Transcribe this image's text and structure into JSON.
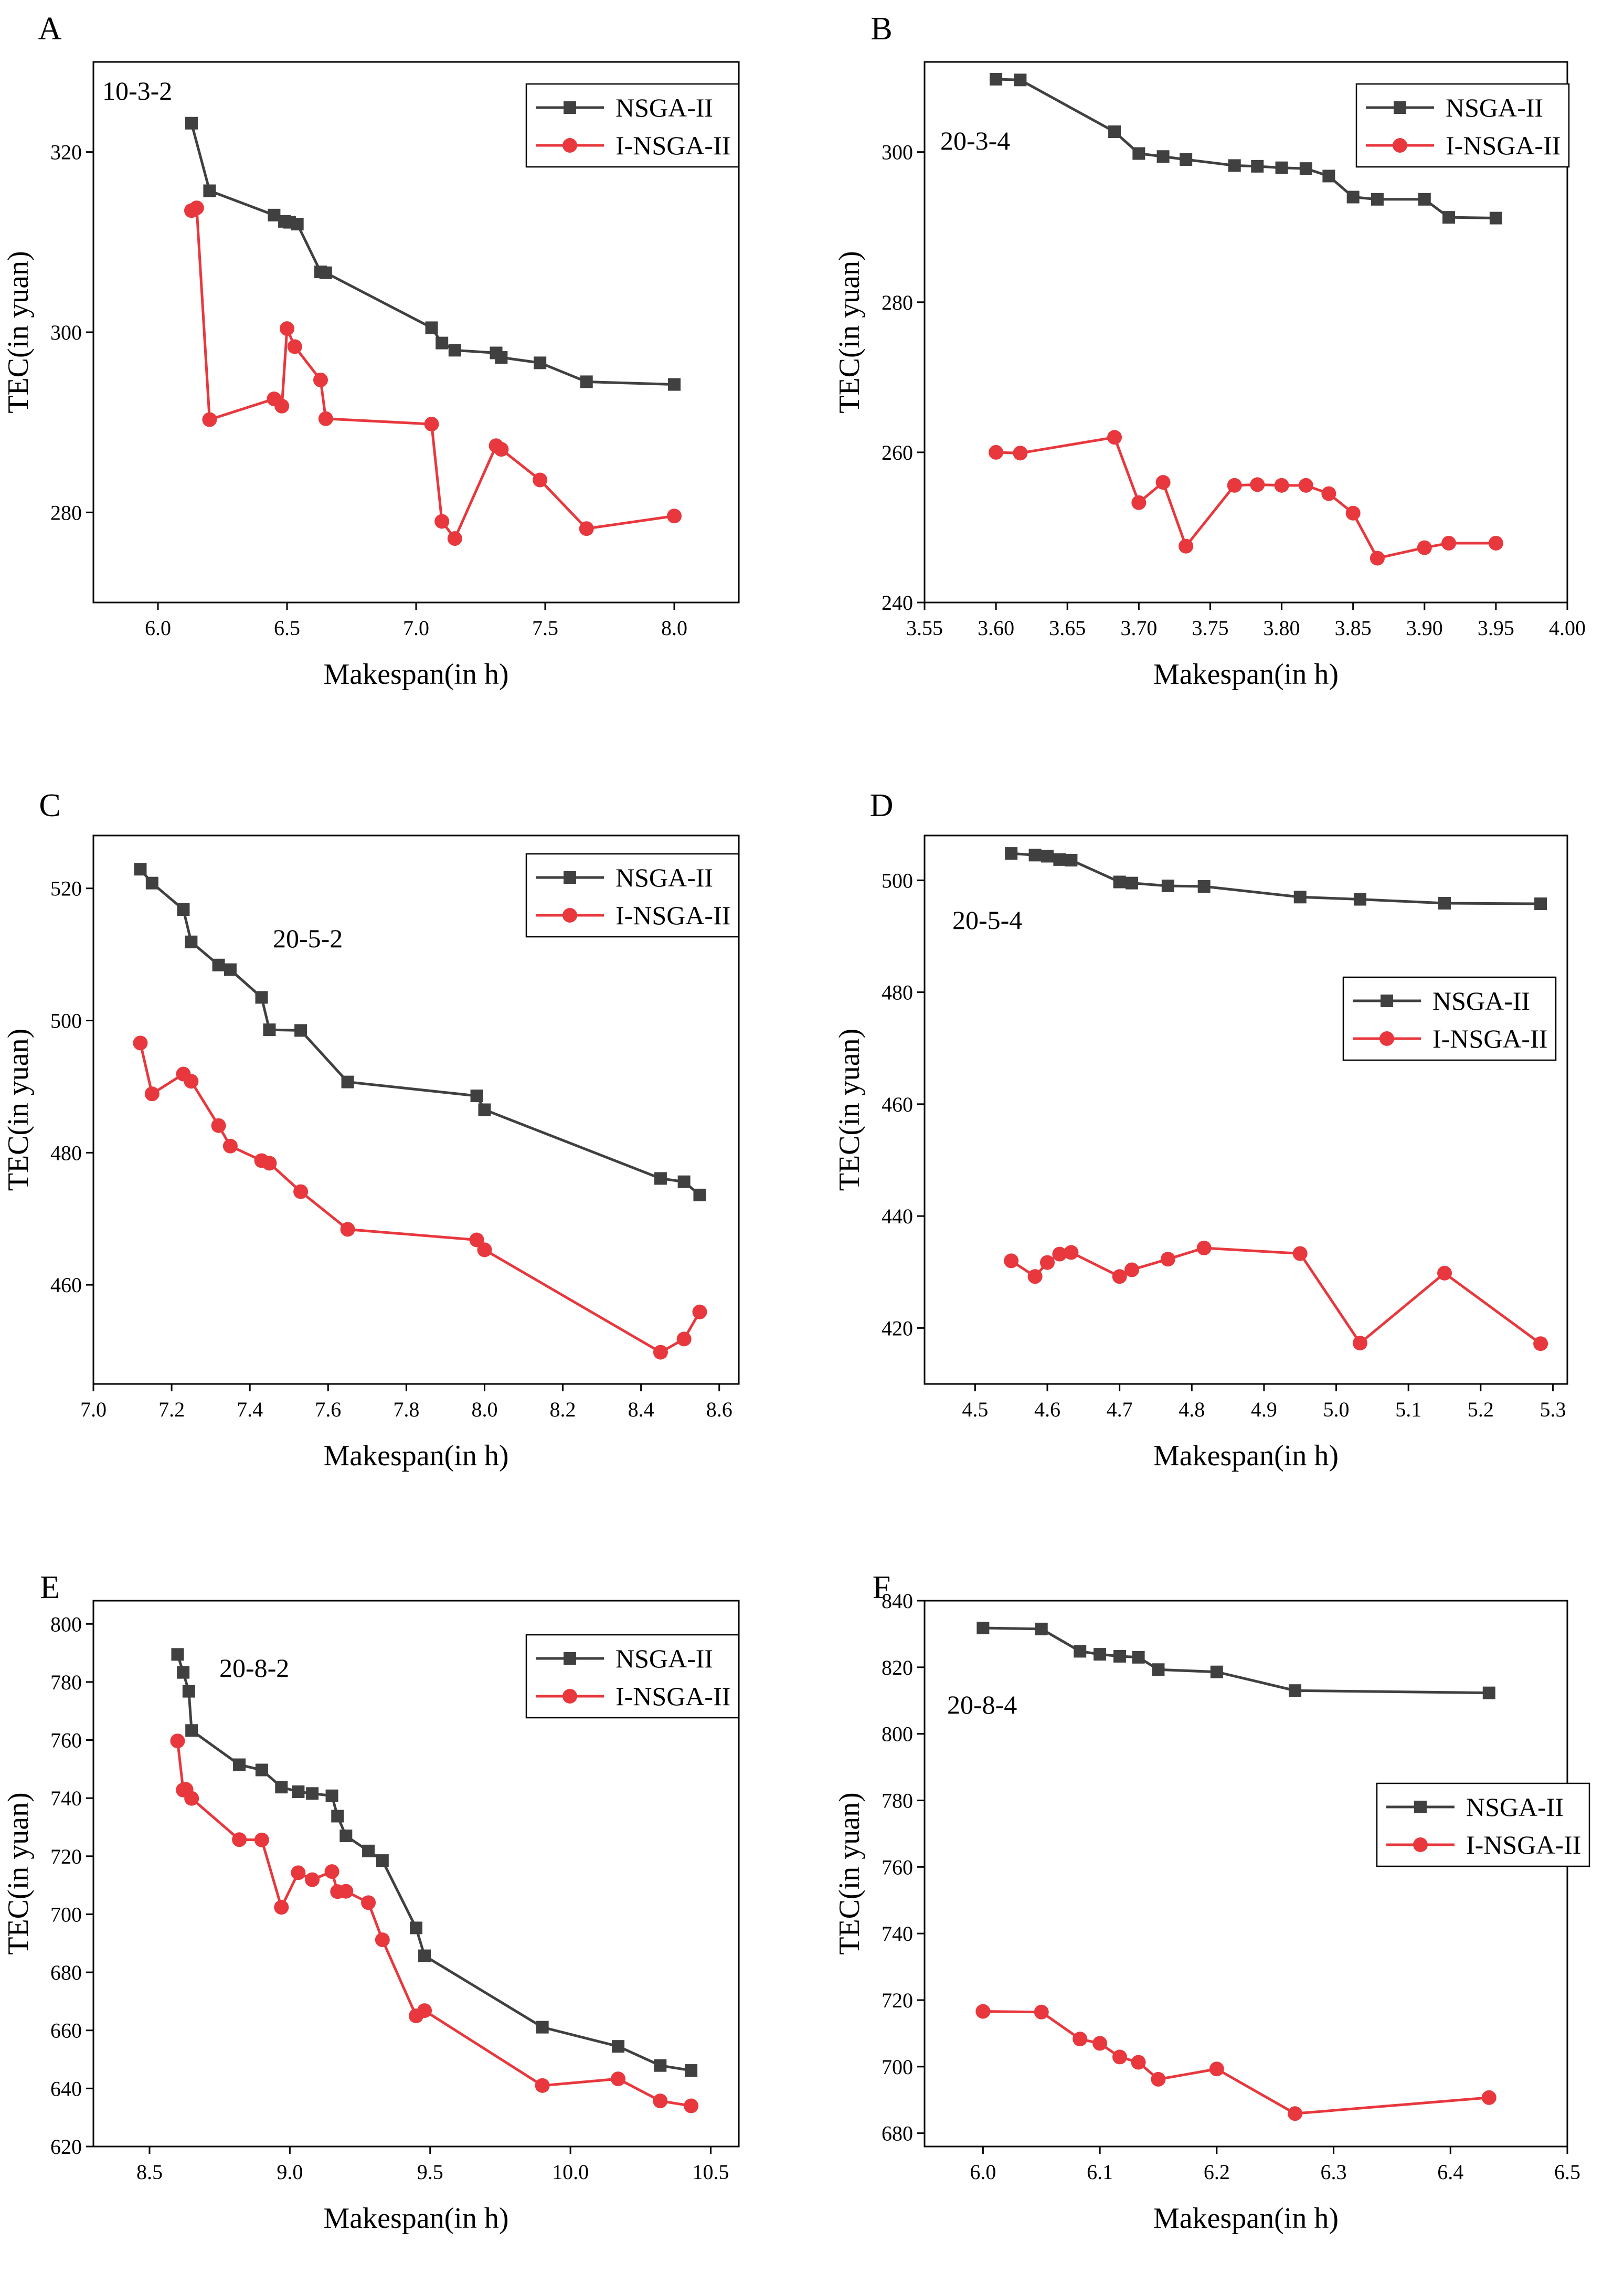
{
  "colors": {
    "nsga": "#404040",
    "insga": "#e8383d",
    "axis": "#000000",
    "background": "#ffffff"
  },
  "series_names": [
    "NSGA-II",
    "I-NSGA-II"
  ],
  "chart_data": [
    {
      "panel": "A",
      "instance": "10-3-2",
      "type": "line",
      "xlabel": "Makespan(in h)",
      "ylabel": "TEC(in yuan)",
      "xlim": [
        5.75,
        8.25
      ],
      "ylim": [
        270,
        330
      ],
      "xticks": [
        6.0,
        6.5,
        7.0,
        7.5,
        8.0
      ],
      "xtick_labels": [
        "6.0",
        "6.5",
        "7.0",
        "7.5",
        "8.0"
      ],
      "yticks": [
        280,
        300,
        320
      ],
      "ytick_labels": [
        "280",
        "300",
        "320"
      ],
      "legend_position": "top-right",
      "instance_label_position": "top-left",
      "series": [
        {
          "name": "NSGA-II",
          "marker": "square",
          "x": [
            6.13,
            6.2,
            6.45,
            6.49,
            6.51,
            6.54,
            6.63,
            6.65,
            7.06,
            7.1,
            7.15,
            7.31,
            7.33,
            7.48,
            7.66,
            8.0
          ],
          "y": [
            323.2,
            315.7,
            313.0,
            312.3,
            312.2,
            312.0,
            306.7,
            306.6,
            300.5,
            298.8,
            298.0,
            297.7,
            297.2,
            296.6,
            294.5,
            294.2
          ]
        },
        {
          "name": "I-NSGA-II",
          "marker": "circle",
          "x": [
            6.13,
            6.15,
            6.2,
            6.45,
            6.48,
            6.5,
            6.53,
            6.63,
            6.65,
            7.06,
            7.1,
            7.15,
            7.31,
            7.33,
            7.48,
            7.66,
            8.0
          ],
          "y": [
            313.5,
            313.8,
            290.3,
            292.6,
            291.8,
            300.4,
            298.4,
            294.7,
            290.4,
            289.8,
            279.0,
            277.1,
            287.4,
            287.0,
            283.6,
            278.2,
            279.6
          ]
        }
      ]
    },
    {
      "panel": "B",
      "instance": "20-3-4",
      "type": "line",
      "xlabel": "Makespan(in h)",
      "ylabel": "TEC(in yuan)",
      "xlim": [
        3.55,
        4.0
      ],
      "ylim": [
        240,
        312
      ],
      "xticks": [
        3.55,
        3.6,
        3.65,
        3.7,
        3.75,
        3.8,
        3.85,
        3.9,
        3.95,
        4.0
      ],
      "xtick_labels": [
        "3.55",
        "3.60",
        "3.65",
        "3.70",
        "3.75",
        "3.80",
        "3.85",
        "3.90",
        "3.95",
        "4.00"
      ],
      "yticks": [
        240,
        260,
        280,
        300
      ],
      "ytick_labels": [
        "240",
        "260",
        "280",
        "300"
      ],
      "legend_position": "top-right",
      "instance_label_position": "top-left",
      "series": [
        {
          "name": "NSGA-II",
          "marker": "square",
          "x": [
            3.6,
            3.617,
            3.683,
            3.7,
            3.717,
            3.733,
            3.767,
            3.783,
            3.8,
            3.817,
            3.833,
            3.85,
            3.867,
            3.9,
            3.917,
            3.95
          ],
          "y": [
            309.7,
            309.6,
            302.7,
            299.8,
            299.4,
            299.0,
            298.2,
            298.1,
            297.9,
            297.8,
            296.8,
            294.0,
            293.7,
            293.7,
            291.3,
            291.2
          ]
        },
        {
          "name": "I-NSGA-II",
          "marker": "circle",
          "x": [
            3.6,
            3.617,
            3.683,
            3.7,
            3.717,
            3.733,
            3.767,
            3.783,
            3.8,
            3.817,
            3.833,
            3.85,
            3.867,
            3.9,
            3.917,
            3.95
          ],
          "y": [
            260.0,
            259.9,
            262.0,
            253.3,
            256.0,
            247.5,
            255.6,
            255.7,
            255.6,
            255.6,
            254.5,
            251.9,
            245.9,
            247.3,
            247.9,
            247.9
          ]
        }
      ]
    },
    {
      "panel": "C",
      "instance": "20-5-2",
      "type": "line",
      "xlabel": "Makespan(in h)",
      "ylabel": "TEC(in yuan)",
      "xlim": [
        7.0,
        8.65
      ],
      "ylim": [
        445,
        528
      ],
      "xticks": [
        7.0,
        7.2,
        7.4,
        7.6,
        7.8,
        8.0,
        8.2,
        8.4,
        8.6
      ],
      "xtick_labels": [
        "7.0",
        "7.2",
        "7.4",
        "7.6",
        "7.8",
        "8.0",
        "8.2",
        "8.4",
        "8.6"
      ],
      "yticks": [
        460,
        480,
        500,
        520
      ],
      "ytick_labels": [
        "460",
        "480",
        "500",
        "520"
      ],
      "legend_position": "top-right",
      "instance_label_position": "top-center",
      "series": [
        {
          "name": "NSGA-II",
          "marker": "square",
          "x": [
            7.12,
            7.15,
            7.23,
            7.25,
            7.32,
            7.35,
            7.43,
            7.45,
            7.53,
            7.65,
            7.98,
            8.0,
            8.45,
            8.51,
            8.55
          ],
          "y": [
            522.9,
            520.8,
            516.8,
            511.9,
            508.4,
            507.7,
            503.5,
            498.6,
            498.5,
            490.7,
            488.6,
            486.5,
            476.1,
            475.6,
            473.6
          ]
        },
        {
          "name": "I-NSGA-II",
          "marker": "circle",
          "x": [
            7.12,
            7.15,
            7.23,
            7.25,
            7.32,
            7.35,
            7.43,
            7.45,
            7.53,
            7.65,
            7.98,
            8.0,
            8.45,
            8.51,
            8.55
          ],
          "y": [
            496.6,
            488.9,
            491.9,
            490.8,
            484.1,
            481.0,
            478.8,
            478.4,
            474.1,
            468.4,
            466.8,
            465.3,
            449.8,
            451.8,
            455.9
          ]
        }
      ]
    },
    {
      "panel": "D",
      "instance": "20-5-4",
      "type": "line",
      "xlabel": "Makespan(in h)",
      "ylabel": "TEC(in yuan)",
      "xlim": [
        4.43,
        5.32
      ],
      "ylim": [
        410,
        508
      ],
      "xticks": [
        4.5,
        4.6,
        4.7,
        4.8,
        4.9,
        5.0,
        5.1,
        5.2,
        5.3
      ],
      "xtick_labels": [
        "4.5",
        "4.6",
        "4.7",
        "4.8",
        "4.9",
        "5.0",
        "5.1",
        "5.2",
        "5.3"
      ],
      "yticks": [
        420,
        440,
        460,
        480,
        500
      ],
      "ytick_labels": [
        "420",
        "440",
        "460",
        "480",
        "500"
      ],
      "legend_position": "upper-right",
      "instance_label_position": "top-left",
      "series": [
        {
          "name": "NSGA-II",
          "marker": "square",
          "x": [
            4.55,
            4.583,
            4.6,
            4.617,
            4.633,
            4.7,
            4.717,
            4.767,
            4.817,
            4.95,
            5.033,
            5.15,
            5.283
          ],
          "y": [
            504.8,
            504.5,
            504.3,
            503.7,
            503.6,
            499.7,
            499.5,
            499.0,
            498.9,
            497.0,
            496.6,
            495.9,
            495.8
          ]
        },
        {
          "name": "I-NSGA-II",
          "marker": "circle",
          "x": [
            4.55,
            4.583,
            4.6,
            4.617,
            4.633,
            4.7,
            4.717,
            4.767,
            4.817,
            4.95,
            5.033,
            5.15,
            5.283
          ],
          "y": [
            432.0,
            429.2,
            431.7,
            433.2,
            433.5,
            429.2,
            430.4,
            432.3,
            434.3,
            433.3,
            417.3,
            429.8,
            417.2
          ]
        }
      ]
    },
    {
      "panel": "E",
      "instance": "20-8-2",
      "type": "line",
      "xlabel": "Makespan(in h)",
      "ylabel": "TEC(in yuan)",
      "xlim": [
        8.3,
        10.6
      ],
      "ylim": [
        620,
        808
      ],
      "xticks": [
        8.5,
        9.0,
        9.5,
        10.0,
        10.5
      ],
      "xtick_labels": [
        "8.5",
        "9.0",
        "9.5",
        "10.0",
        "10.5"
      ],
      "yticks": [
        620,
        640,
        660,
        680,
        700,
        720,
        740,
        760,
        780,
        800
      ],
      "ytick_labels": [
        "620",
        "640",
        "660",
        "680",
        "700",
        "720",
        "740",
        "760",
        "780",
        "800"
      ],
      "legend_position": "top-right",
      "instance_label_position": "top-left",
      "series": [
        {
          "name": "NSGA-II",
          "marker": "square",
          "x": [
            8.6,
            8.62,
            8.64,
            8.65,
            8.82,
            8.9,
            8.97,
            9.03,
            9.08,
            9.15,
            9.17,
            9.2,
            9.28,
            9.33,
            9.45,
            9.48,
            9.9,
            10.17,
            10.32,
            10.43
          ],
          "y": [
            789.5,
            783.3,
            776.8,
            763.3,
            751.5,
            749.7,
            743.8,
            742.2,
            741.6,
            740.8,
            733.8,
            727.0,
            721.8,
            718.5,
            695.3,
            685.7,
            661.1,
            654.5,
            647.9,
            646.2
          ]
        },
        {
          "name": "I-NSGA-II",
          "marker": "circle",
          "x": [
            8.6,
            8.62,
            8.63,
            8.65,
            8.82,
            8.9,
            8.97,
            9.03,
            9.08,
            9.15,
            9.17,
            9.2,
            9.28,
            9.33,
            9.45,
            9.48,
            9.9,
            10.17,
            10.32,
            10.43
          ],
          "y": [
            759.7,
            742.8,
            743.0,
            739.9,
            725.7,
            725.6,
            702.4,
            714.3,
            711.9,
            714.7,
            707.8,
            707.9,
            704.0,
            691.2,
            665.0,
            666.8,
            641.0,
            643.3,
            635.7,
            634.0
          ]
        }
      ]
    },
    {
      "panel": "F",
      "instance": "20-8-4",
      "type": "line",
      "xlabel": "Makespan(in h)",
      "ylabel": "TEC(in yuan)",
      "xlim": [
        5.95,
        6.5
      ],
      "ylim": [
        676,
        840
      ],
      "xticks": [
        6.0,
        6.1,
        6.2,
        6.3,
        6.4,
        6.5
      ],
      "xtick_labels": [
        "6.0",
        "6.1",
        "6.2",
        "6.3",
        "6.4",
        "6.5"
      ],
      "yticks": [
        680,
        700,
        720,
        740,
        760,
        780,
        800,
        820,
        840
      ],
      "ytick_labels": [
        "680",
        "700",
        "720",
        "740",
        "760",
        "780",
        "800",
        "820",
        "840"
      ],
      "legend_position": "middle-right",
      "instance_label_position": "top-left",
      "series": [
        {
          "name": "NSGA-II",
          "marker": "square",
          "x": [
            6.0,
            6.05,
            6.083,
            6.1,
            6.117,
            6.133,
            6.15,
            6.2,
            6.267,
            6.433
          ],
          "y": [
            831.8,
            831.5,
            824.8,
            823.9,
            823.3,
            823.0,
            819.3,
            818.6,
            813.0,
            812.3
          ]
        },
        {
          "name": "I-NSGA-II",
          "marker": "circle",
          "x": [
            6.0,
            6.05,
            6.083,
            6.1,
            6.117,
            6.133,
            6.15,
            6.2,
            6.267,
            6.433
          ],
          "y": [
            716.6,
            716.4,
            708.3,
            707.0,
            702.9,
            701.3,
            696.2,
            699.3,
            685.9,
            690.7
          ]
        }
      ]
    }
  ]
}
